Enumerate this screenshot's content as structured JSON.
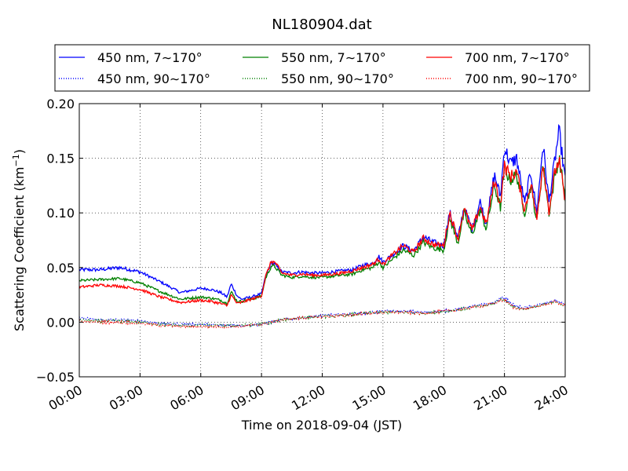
{
  "chart_data": {
    "type": "line",
    "title": "NL180904.dat",
    "xlabel": "Time on 2018-09-04 (JST)",
    "ylabel_main": "Scattering Coefficient (km",
    "ylabel_sup": "−1",
    "ylabel_close": ")",
    "x_ticks": [
      "00:00",
      "03:00",
      "06:00",
      "09:00",
      "12:00",
      "15:00",
      "18:00",
      "21:00",
      "24:00"
    ],
    "x_tick_hours": [
      0,
      3,
      6,
      9,
      12,
      15,
      18,
      21,
      24
    ],
    "xlim_hours": [
      0,
      24
    ],
    "y_ticks": [
      "−0.05",
      "0.00",
      "0.05",
      "0.10",
      "0.15",
      "0.20"
    ],
    "y_tick_values": [
      -0.05,
      0,
      0.05,
      0.1,
      0.15,
      0.2
    ],
    "ylim": [
      -0.05,
      0.2
    ],
    "grid": true,
    "legend_position": "top",
    "series": [
      {
        "name": "450 nm, 7∼170°",
        "color": "#0000ff",
        "style": "solid",
        "x": [
          0,
          1,
          2,
          3,
          4,
          5,
          5.5,
          6,
          6.5,
          7,
          7.3,
          7.5,
          7.8,
          8,
          8.5,
          9,
          9.2,
          9.5,
          9.7,
          10,
          10.5,
          11,
          11.5,
          12,
          12.5,
          13,
          13.5,
          14,
          14.5,
          14.8,
          15,
          15.5,
          16,
          16.5,
          17,
          17.5,
          18,
          18.3,
          18.7,
          19,
          19.4,
          19.8,
          20.1,
          20.5,
          20.8,
          21,
          21.3,
          21.6,
          22,
          22.3,
          22.6,
          22.9,
          23.2,
          23.5,
          23.7,
          24
        ],
        "y": [
          0.048,
          0.048,
          0.05,
          0.046,
          0.037,
          0.027,
          0.029,
          0.031,
          0.03,
          0.027,
          0.023,
          0.035,
          0.024,
          0.021,
          0.023,
          0.026,
          0.042,
          0.055,
          0.052,
          0.046,
          0.045,
          0.046,
          0.045,
          0.045,
          0.046,
          0.047,
          0.048,
          0.052,
          0.054,
          0.06,
          0.055,
          0.062,
          0.07,
          0.065,
          0.078,
          0.073,
          0.07,
          0.1,
          0.076,
          0.105,
          0.085,
          0.11,
          0.09,
          0.135,
          0.115,
          0.16,
          0.145,
          0.15,
          0.108,
          0.138,
          0.1,
          0.163,
          0.11,
          0.15,
          0.175,
          0.13
        ]
      },
      {
        "name": "550 nm, 7∼170°",
        "color": "#008000",
        "style": "solid",
        "x": [
          0,
          1,
          2,
          3,
          4,
          5,
          5.5,
          6,
          6.5,
          7,
          7.3,
          7.5,
          7.8,
          8,
          8.5,
          9,
          9.2,
          9.5,
          9.7,
          10,
          10.5,
          11,
          11.5,
          12,
          12.5,
          13,
          13.5,
          14,
          14.5,
          14.8,
          15,
          15.5,
          16,
          16.5,
          17,
          17.5,
          18,
          18.3,
          18.7,
          19,
          19.4,
          19.8,
          20.1,
          20.5,
          20.8,
          21,
          21.3,
          21.6,
          22,
          22.3,
          22.6,
          22.9,
          23.2,
          23.5,
          23.7,
          24
        ],
        "y": [
          0.038,
          0.039,
          0.04,
          0.036,
          0.028,
          0.021,
          0.022,
          0.023,
          0.022,
          0.02,
          0.017,
          0.028,
          0.019,
          0.019,
          0.021,
          0.024,
          0.04,
          0.052,
          0.05,
          0.043,
          0.041,
          0.042,
          0.041,
          0.041,
          0.042,
          0.043,
          0.044,
          0.048,
          0.05,
          0.055,
          0.05,
          0.058,
          0.066,
          0.061,
          0.073,
          0.068,
          0.066,
          0.095,
          0.072,
          0.1,
          0.08,
          0.103,
          0.085,
          0.125,
          0.105,
          0.14,
          0.13,
          0.135,
          0.1,
          0.125,
          0.092,
          0.145,
          0.1,
          0.135,
          0.15,
          0.115
        ]
      },
      {
        "name": "700 nm, 7∼170°",
        "color": "#ff0000",
        "style": "solid",
        "x": [
          0,
          1,
          2,
          3,
          4,
          5,
          5.5,
          6,
          6.5,
          7,
          7.3,
          7.5,
          7.8,
          8,
          8.5,
          9,
          9.2,
          9.5,
          9.7,
          10,
          10.5,
          11,
          11.5,
          12,
          12.5,
          13,
          13.5,
          14,
          14.5,
          14.8,
          15,
          15.5,
          16,
          16.5,
          17,
          17.5,
          18,
          18.3,
          18.7,
          19,
          19.4,
          19.8,
          20.1,
          20.5,
          20.8,
          21,
          21.3,
          21.6,
          22,
          22.3,
          22.6,
          22.9,
          23.2,
          23.5,
          23.7,
          24
        ],
        "y": [
          0.032,
          0.034,
          0.033,
          0.03,
          0.023,
          0.018,
          0.019,
          0.02,
          0.019,
          0.017,
          0.015,
          0.025,
          0.017,
          0.018,
          0.021,
          0.024,
          0.042,
          0.056,
          0.054,
          0.045,
          0.043,
          0.044,
          0.043,
          0.043,
          0.044,
          0.045,
          0.047,
          0.05,
          0.053,
          0.058,
          0.053,
          0.062,
          0.07,
          0.064,
          0.077,
          0.071,
          0.07,
          0.1,
          0.076,
          0.104,
          0.084,
          0.106,
          0.089,
          0.13,
          0.108,
          0.143,
          0.133,
          0.138,
          0.102,
          0.128,
          0.094,
          0.147,
          0.102,
          0.138,
          0.148,
          0.11
        ]
      },
      {
        "name": "450 nm, 90∼170°",
        "color": "#0000ff",
        "style": "dotted",
        "x": [
          0,
          1,
          2,
          3,
          4,
          5,
          6,
          7,
          8,
          9,
          10,
          11,
          12,
          13,
          14,
          15,
          16,
          17,
          18,
          19,
          19.5,
          20,
          20.5,
          20.8,
          21,
          21.5,
          22,
          22.5,
          23,
          23.5,
          24
        ],
        "y": [
          0.004,
          0.002,
          0.002,
          0.001,
          -0.001,
          -0.002,
          -0.002,
          -0.003,
          -0.003,
          -0.002,
          0.002,
          0.004,
          0.006,
          0.007,
          0.008,
          0.01,
          0.01,
          0.009,
          0.01,
          0.013,
          0.015,
          0.016,
          0.018,
          0.022,
          0.022,
          0.015,
          0.013,
          0.015,
          0.017,
          0.02,
          0.016
        ]
      },
      {
        "name": "550 nm, 90∼170°",
        "color": "#008000",
        "style": "dotted",
        "x": [
          0,
          1,
          2,
          3,
          4,
          5,
          6,
          7,
          8,
          9,
          10,
          11,
          12,
          13,
          14,
          15,
          16,
          17,
          18,
          19,
          19.5,
          20,
          20.5,
          20.8,
          21,
          21.5,
          22,
          22.5,
          23,
          23.5,
          24
        ],
        "y": [
          0.002,
          0.001,
          0.001,
          0.0,
          -0.002,
          -0.003,
          -0.003,
          -0.003,
          -0.003,
          -0.002,
          0.002,
          0.004,
          0.005,
          0.006,
          0.008,
          0.009,
          0.009,
          0.008,
          0.01,
          0.012,
          0.014,
          0.015,
          0.017,
          0.021,
          0.02,
          0.013,
          0.012,
          0.014,
          0.016,
          0.019,
          0.015
        ]
      },
      {
        "name": "700 nm, 90∼170°",
        "color": "#ff0000",
        "style": "dotted",
        "x": [
          0,
          1,
          2,
          3,
          4,
          5,
          6,
          7,
          8,
          9,
          10,
          11,
          12,
          13,
          14,
          15,
          16,
          17,
          18,
          19,
          19.5,
          20,
          20.5,
          20.8,
          21,
          21.5,
          22,
          22.5,
          23,
          23.5,
          24
        ],
        "y": [
          0.001,
          0.0,
          0.0,
          -0.001,
          -0.003,
          -0.004,
          -0.004,
          -0.004,
          -0.004,
          -0.002,
          0.002,
          0.004,
          0.005,
          0.006,
          0.008,
          0.009,
          0.009,
          0.008,
          0.01,
          0.012,
          0.014,
          0.015,
          0.017,
          0.02,
          0.02,
          0.013,
          0.012,
          0.014,
          0.016,
          0.019,
          0.015
        ]
      }
    ]
  }
}
